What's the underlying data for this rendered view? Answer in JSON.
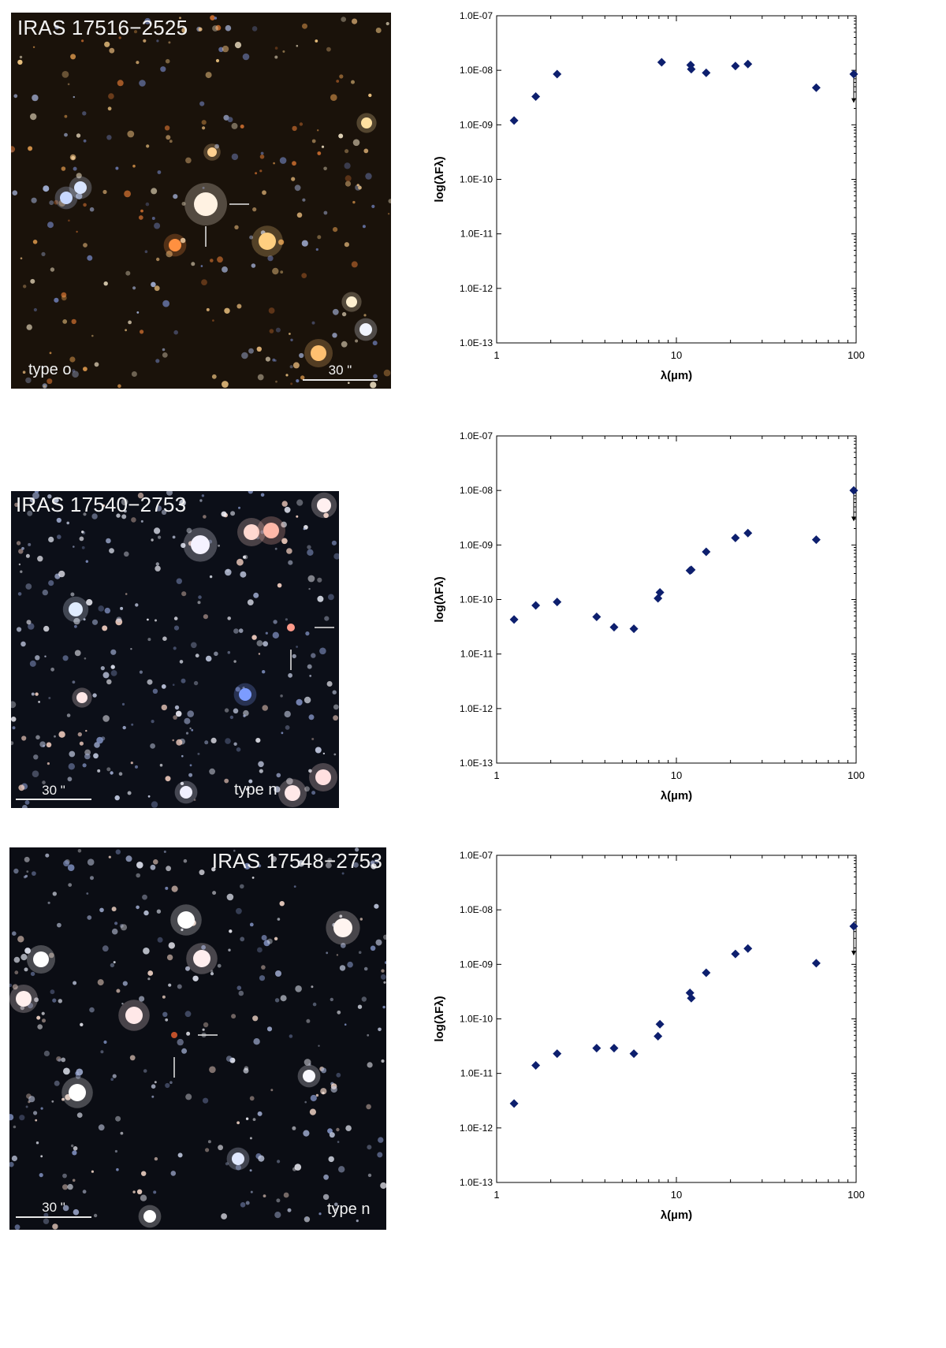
{
  "panels": [
    {
      "title": "IRAS 17516−2525",
      "type_label": "type o",
      "scale_label": "30 \""
    },
    {
      "title": "IRAS 17540−2753",
      "type_label": "type n",
      "scale_label": "30 \""
    },
    {
      "title": "IRAS 17548−2753",
      "type_label": "type n",
      "scale_label": "30 \""
    }
  ],
  "colors": {
    "marker": "#0d1f6e",
    "axis": "#000000"
  },
  "chart_data": [
    {
      "type": "scatter",
      "xlabel": "λ(µm)",
      "ylabel": "log(λFλ)",
      "xscale": "log",
      "yscale": "log",
      "xlim": [
        1,
        100
      ],
      "ylim": [
        1e-13,
        1e-07
      ],
      "x_ticks": [
        "1",
        "10",
        "100"
      ],
      "y_ticks": [
        "1.0E-13",
        "1.0E-12",
        "1.0E-11",
        "1.0E-10",
        "1.0E-09",
        "1.0E-08",
        "1.0E-07"
      ],
      "marker": "diamond",
      "points": [
        {
          "x": 1.25,
          "y": 1.2e-09
        },
        {
          "x": 1.65,
          "y": 3.3e-09
        },
        {
          "x": 2.17,
          "y": 8.5e-09
        },
        {
          "x": 8.28,
          "y": 1.4e-08
        },
        {
          "x": 12,
          "y": 1.25e-08
        },
        {
          "x": 12.1,
          "y": 1.05e-08
        },
        {
          "x": 14.65,
          "y": 9e-09
        },
        {
          "x": 21.3,
          "y": 1.2e-08
        },
        {
          "x": 25,
          "y": 1.3e-08
        },
        {
          "x": 60,
          "y": 4.8e-09
        },
        {
          "x": 97,
          "y": 8.5e-09
        }
      ],
      "upper_limits": [
        {
          "x": 97,
          "y": 8.5e-09,
          "to": 2.6e-09
        }
      ]
    },
    {
      "type": "scatter",
      "xlabel": "λ(µm)",
      "ylabel": "log(λFλ)",
      "xscale": "log",
      "yscale": "log",
      "xlim": [
        1,
        100
      ],
      "ylim": [
        1e-13,
        1e-07
      ],
      "x_ticks": [
        "1",
        "10",
        "100"
      ],
      "y_ticks": [
        "1.0E-13",
        "1.0E-12",
        "1.0E-11",
        "1.0E-10",
        "1.0E-09",
        "1.0E-08",
        "1.0E-07"
      ],
      "marker": "diamond",
      "points": [
        {
          "x": 1.25,
          "y": 4.3e-11
        },
        {
          "x": 1.65,
          "y": 7.8e-11
        },
        {
          "x": 2.17,
          "y": 9e-11
        },
        {
          "x": 3.6,
          "y": 4.8e-11
        },
        {
          "x": 4.5,
          "y": 3.1e-11
        },
        {
          "x": 5.8,
          "y": 2.9e-11
        },
        {
          "x": 7.9,
          "y": 1.05e-10
        },
        {
          "x": 8.1,
          "y": 1.35e-10
        },
        {
          "x": 11.9,
          "y": 3.4e-10
        },
        {
          "x": 12.1,
          "y": 3.5e-10
        },
        {
          "x": 14.65,
          "y": 7.5e-10
        },
        {
          "x": 21.3,
          "y": 1.35e-09
        },
        {
          "x": 25,
          "y": 1.65e-09
        },
        {
          "x": 60,
          "y": 1.25e-09
        },
        {
          "x": 97,
          "y": 1e-08
        }
      ],
      "upper_limits": [
        {
          "x": 97,
          "y": 1e-08,
          "to": 2.8e-09
        }
      ]
    },
    {
      "type": "scatter",
      "xlabel": "λ(µm)",
      "ylabel": "log(λFλ)",
      "xscale": "log",
      "yscale": "log",
      "xlim": [
        1,
        100
      ],
      "ylim": [
        1e-13,
        1e-07
      ],
      "x_ticks": [
        "1",
        "10",
        "100"
      ],
      "y_ticks": [
        "1.0E-13",
        "1.0E-12",
        "1.0E-11",
        "1.0E-10",
        "1.0E-09",
        "1.0E-08",
        "1.0E-07"
      ],
      "marker": "diamond",
      "points": [
        {
          "x": 1.25,
          "y": 2.8e-12
        },
        {
          "x": 1.65,
          "y": 1.4e-11
        },
        {
          "x": 2.17,
          "y": 2.3e-11
        },
        {
          "x": 3.6,
          "y": 2.9e-11
        },
        {
          "x": 4.5,
          "y": 2.9e-11
        },
        {
          "x": 5.8,
          "y": 2.3e-11
        },
        {
          "x": 7.9,
          "y": 4.8e-11
        },
        {
          "x": 8.1,
          "y": 8e-11
        },
        {
          "x": 11.9,
          "y": 3e-10
        },
        {
          "x": 12.1,
          "y": 2.4e-10
        },
        {
          "x": 14.65,
          "y": 7e-10
        },
        {
          "x": 21.3,
          "y": 1.55e-09
        },
        {
          "x": 25,
          "y": 1.95e-09
        },
        {
          "x": 60,
          "y": 1.05e-09
        },
        {
          "x": 97,
          "y": 5e-09
        }
      ],
      "upper_limits": [
        {
          "x": 97,
          "y": 5e-09,
          "to": 1.5e-09
        }
      ]
    }
  ]
}
